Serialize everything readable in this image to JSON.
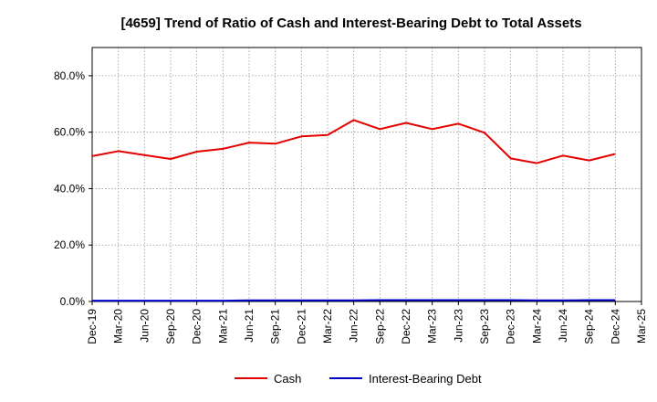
{
  "chart_data": {
    "type": "line",
    "title": "[4659]  Trend of Ratio of Cash and Interest-Bearing Debt to Total Assets",
    "xlabel": "",
    "ylabel": "",
    "x": [
      "Dec-19",
      "Mar-20",
      "Jun-20",
      "Sep-20",
      "Dec-20",
      "Mar-21",
      "Jun-21",
      "Sep-21",
      "Dec-21",
      "Mar-22",
      "Jun-22",
      "Sep-22",
      "Dec-22",
      "Mar-23",
      "Jun-23",
      "Sep-23",
      "Dec-23",
      "Mar-24",
      "Jun-24",
      "Sep-24",
      "Dec-24",
      "Mar-25"
    ],
    "ylim": [
      0,
      90
    ],
    "yticks": [
      0,
      20,
      40,
      60,
      80
    ],
    "ytick_labels": [
      "0.0%",
      "20.0%",
      "40.0%",
      "60.0%",
      "80.0%"
    ],
    "grid": true,
    "legend_position": "bottom",
    "series": [
      {
        "name": "Cash",
        "color": "#e60000",
        "values": [
          51.5,
          53.3,
          51.9,
          50.5,
          53.1,
          54.1,
          56.3,
          55.9,
          58.5,
          59.0,
          64.3,
          61.1,
          63.3,
          61.1,
          63.0,
          59.8,
          50.7,
          49.0,
          51.7,
          50.0,
          52.3,
          null
        ]
      },
      {
        "name": "Interest-Bearing Debt",
        "color": "#0000cc",
        "values": [
          0.3,
          0.3,
          0.3,
          0.3,
          0.3,
          0.3,
          0.4,
          0.4,
          0.4,
          0.4,
          0.4,
          0.5,
          0.5,
          0.5,
          0.5,
          0.5,
          0.5,
          0.4,
          0.4,
          0.5,
          0.5,
          null
        ]
      }
    ]
  }
}
